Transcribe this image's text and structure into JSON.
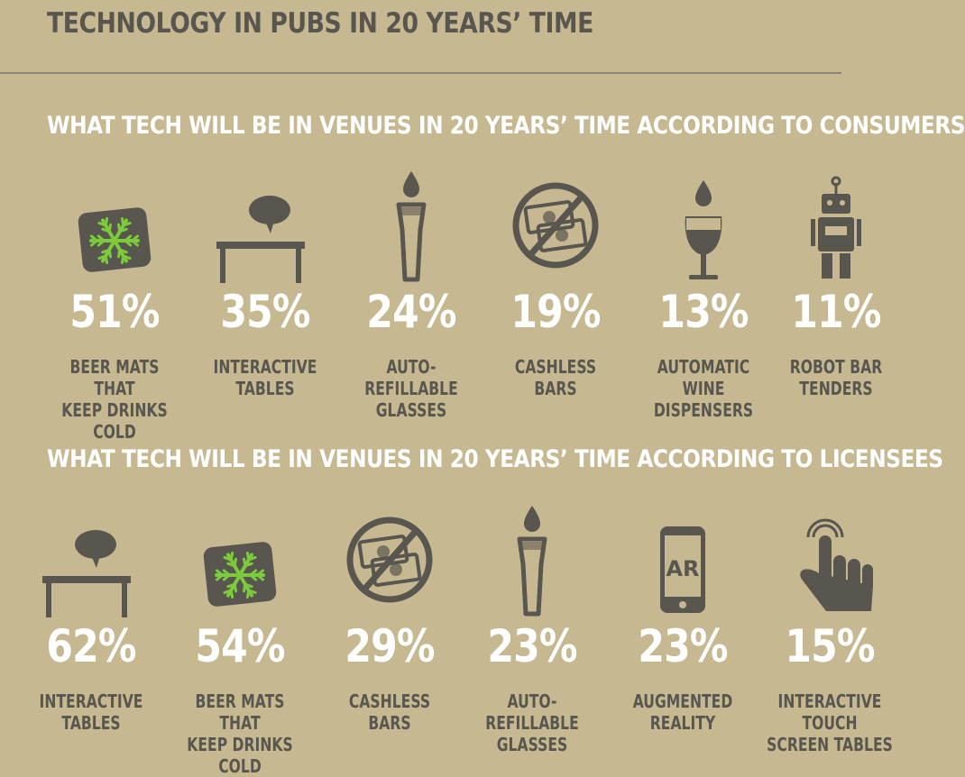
{
  "title": "TECHNOLOGY IN PUBS IN 20 YEARS’ TIME",
  "colors": {
    "background": "#c6b992",
    "dark": "#59564f",
    "white": "#ffffff",
    "green": "#7ccb3c"
  },
  "chart_data": [
    {
      "type": "table",
      "title": "WHAT TECH WILL BE IN VENUES IN 20 YEARS’ TIME ACCORDING TO CONSUMERS",
      "items": [
        {
          "label": "BEER MATS THAT\nKEEP DRINKS COLD",
          "value": 51,
          "display": "51%",
          "icon": "snowflake-mat-icon"
        },
        {
          "label": "INTERACTIVE\nTABLES",
          "value": 35,
          "display": "35%",
          "icon": "interactive-table-icon"
        },
        {
          "label": "AUTO-REFILLABLE\nGLASSES",
          "value": 24,
          "display": "24%",
          "icon": "refill-glass-icon"
        },
        {
          "label": "CASHLESS\nBARS",
          "value": 19,
          "display": "19%",
          "icon": "no-cash-icon"
        },
        {
          "label": "AUTOMATIC WINE\nDISPENSERS",
          "value": 13,
          "display": "13%",
          "icon": "wine-glass-icon"
        },
        {
          "label": "ROBOT BAR\nTENDERS",
          "value": 11,
          "display": "11%",
          "icon": "robot-icon"
        }
      ]
    },
    {
      "type": "table",
      "title": "WHAT TECH WILL BE IN VENUES IN 20 YEARS’ TIME ACCORDING TO LICENSEES",
      "items": [
        {
          "label": "INTERACTIVE\nTABLES",
          "value": 62,
          "display": "62%",
          "icon": "interactive-table-icon"
        },
        {
          "label": "BEER MATS THAT\nKEEP DRINKS COLD",
          "value": 54,
          "display": "54%",
          "icon": "snowflake-mat-icon"
        },
        {
          "label": "CASHLESS\nBARS",
          "value": 29,
          "display": "29%",
          "icon": "no-cash-icon"
        },
        {
          "label": "AUTO-REFILLABLE\nGLASSES",
          "value": 23,
          "display": "23%",
          "icon": "refill-glass-icon"
        },
        {
          "label": "AUGMENTED\nREALITY",
          "value": 23,
          "display": "23%",
          "icon": "ar-phone-icon"
        },
        {
          "label": "INTERACTIVE TOUCH\nSCREEN TABLES",
          "value": 15,
          "display": "15%",
          "icon": "touch-hand-icon"
        }
      ]
    }
  ]
}
